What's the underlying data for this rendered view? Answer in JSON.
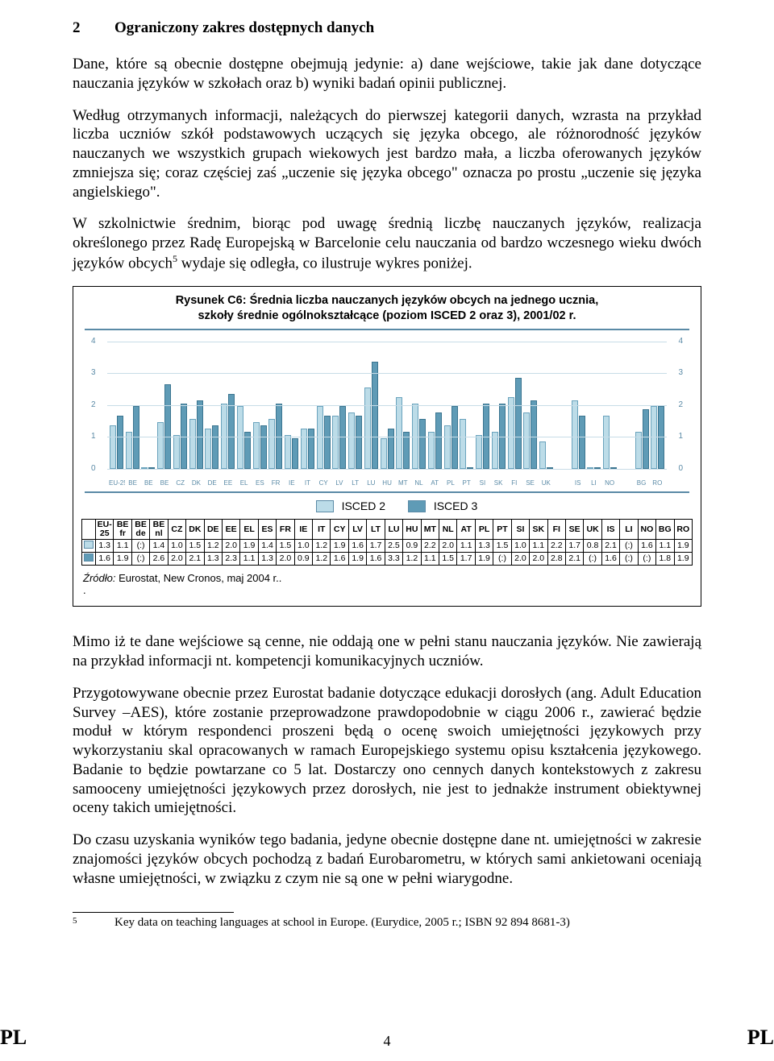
{
  "section": {
    "number": "2",
    "title": "Ograniczony zakres dostępnych danych"
  },
  "paragraphs": {
    "p1": "Dane, które są obecnie dostępne obejmują jedynie: a) dane wejściowe, takie jak dane dotyczące nauczania języków w szkołach oraz b) wyniki badań opinii publicznej.",
    "p2": "Według otrzymanych informacji, należących do pierwszej kategorii danych, wzrasta na przykład liczba uczniów szkół podstawowych uczących się języka obcego, ale różnorodność języków nauczanych we wszystkich grupach wiekowych jest bardzo mała, a liczba oferowanych języków zmniejsza się; coraz częściej zaś „uczenie się języka obcego\" oznacza po prostu „uczenie się języka angielskiego\".",
    "p3a": "W szkolnictwie średnim, biorąc pod uwagę średnią liczbę nauczanych języków, realizacja określonego przez Radę Europejską w Barcelonie celu nauczania od bardzo wczesnego wieku dwóch języków obcych",
    "p3b": " wydaje się odległa, co ilustruje wykres poniżej.",
    "p4": "Mimo iż te dane wejściowe są cenne, nie oddają one w pełni stanu nauczania języków. Nie zawierają na przykład informacji nt. kompetencji komunikacyjnych uczniów.",
    "p5": "Przygotowywane obecnie przez Eurostat badanie dotyczące edukacji dorosłych (ang. Adult Education Survey –AES), które zostanie przeprowadzone prawdopodobnie w ciągu 2006 r., zawierać będzie moduł w którym respondenci proszeni będą o ocenę swoich umiejętności językowych przy wykorzystaniu skal opracowanych w ramach Europejskiego systemu opisu kształcenia językowego. Badanie to będzie powtarzane co 5 lat. Dostarczy ono cennych danych kontekstowych z zakresu samooceny umiejętności językowych przez dorosłych, nie jest to jednakże instrument obiektywnej oceny takich umiejętności.",
    "p6": "Do czasu uzyskania wyników tego badania, jedyne obecnie dostępne dane nt. umiejętności w zakresie znajomości języków obcych pochodzą z badań Eurobarometru, w których sami ankietowani oceniają własne umiejętności, w związku z czym nie są one w pełni wiarygodne."
  },
  "figure": {
    "title_l1": "Rysunek C6: Średnia liczba nauczanych języków obcych na jednego ucznia,",
    "title_l2": "szkoły średnie ogólnokształcące (poziom ISCED 2 oraz 3), 2001/02 r.",
    "legend": {
      "i2": "ISCED 2",
      "i3": "ISCED 3"
    },
    "y_ticks": [
      "0",
      "1",
      "2",
      "3",
      "4"
    ],
    "y_max": 4,
    "countries": [
      "EU-25",
      "BE fr",
      "BE de",
      "BE nl",
      "CZ",
      "DK",
      "DE",
      "EE",
      "EL",
      "ES",
      "FR",
      "IE",
      "IT",
      "CY",
      "LV",
      "LT",
      "LU",
      "HU",
      "MT",
      "NL",
      "AT",
      "PL",
      "PT",
      "SI",
      "SK",
      "FI",
      "SE",
      "UK",
      "",
      "IS",
      "LI",
      "NO",
      "",
      "BG",
      "RO"
    ],
    "isced2": [
      "1.3",
      "1.1",
      "(:)",
      "1.4",
      "1.0",
      "1.5",
      "1.2",
      "2.0",
      "1.9",
      "1.4",
      "1.5",
      "1.0",
      "1.2",
      "1.9",
      "1.6",
      "1.7",
      "2.5",
      "0.9",
      "2.2",
      "2.0",
      "1.1",
      "1.3",
      "1.5",
      "1.0",
      "1.1",
      "2.2",
      "1.7",
      "0.8",
      "2.1",
      "(:)",
      "1.6",
      "1.1",
      "1.9"
    ],
    "isced3": [
      "1.6",
      "1.9",
      "(:)",
      "2.6",
      "2.0",
      "2.1",
      "1.3",
      "2.3",
      "1.1",
      "1.3",
      "2.0",
      "0.9",
      "1.2",
      "1.6",
      "1.9",
      "1.6",
      "3.3",
      "1.2",
      "1.1",
      "1.5",
      "1.7",
      "1.9",
      "(:)",
      "2.0",
      "2.0",
      "2.8",
      "2.1",
      "(:)",
      "1.6",
      "(:)",
      "(:)",
      "1.8",
      "1.9"
    ],
    "source_label": "Źródło:",
    "source_text": " Eurostat, New Cronos, maj 2004 r.."
  },
  "footnote": {
    "num": "5",
    "text": "Key data on teaching languages at school in Europe. (Eurydice, 2005 r.; ISBN 92 894 8681-3)"
  },
  "footer": {
    "page": "4",
    "lang": "PL"
  },
  "style": {
    "chart_border": "#5a8aa6",
    "grid": "#c7dce7",
    "isced2_fill": "#bcdce8",
    "isced3_fill": "#5f9bb6"
  }
}
